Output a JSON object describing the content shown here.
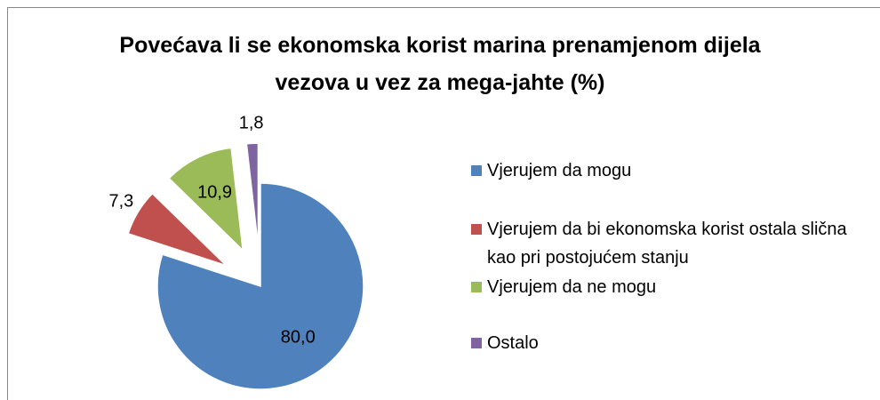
{
  "chart_data": {
    "type": "pie",
    "title": "Povećava li se ekonomska korist marina prenamjenom dijela vezova u vez za mega-jahte (%)",
    "categories": [
      "Vjerujem da mogu",
      "Vjerujem da bi ekonomska korist ostala slična kao pri postojućem stanju",
      "Vjerujem da ne mogu",
      "Ostalo"
    ],
    "values": [
      80.0,
      7.3,
      10.9,
      1.8
    ],
    "value_labels": [
      "80,0",
      "7,3",
      "10,9",
      "1,8"
    ],
    "colors": [
      "#4f81bd",
      "#c0504d",
      "#9bbb59",
      "#8064a2"
    ],
    "legend": "right"
  }
}
